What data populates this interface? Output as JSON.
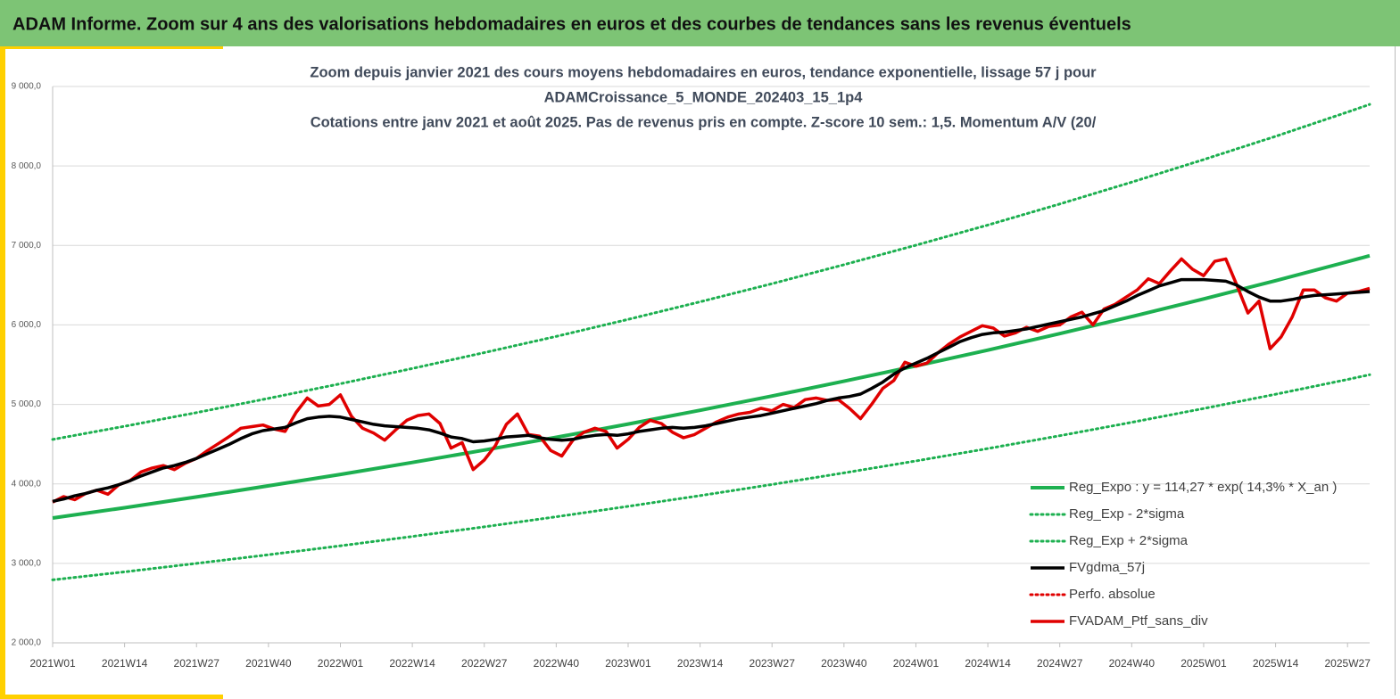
{
  "header": {
    "title": "ADAM Informe. Zoom sur 4 ans des valorisations hebdomadaires en euros et des courbes de tendances sans les revenus éventuels"
  },
  "chart_data": {
    "type": "line",
    "title": [
      "Zoom depuis janvier 2021 des cours moyens hebdomadaires  en euros, tendance exponentielle, lissage 57 j pour",
      "ADAMCroissance_5_MONDE_202403_15_1p4",
      "Cotations entre janv 2021 et août 2025. Pas de revenus pris en compte. Z-score 10 sem.: 1,5. Momentum A/V (20/"
    ],
    "xlim": [
      0,
      238
    ],
    "xticks": [
      {
        "value": 0,
        "label": "2021W01"
      },
      {
        "value": 13,
        "label": "2021W14"
      },
      {
        "value": 26,
        "label": "2021W27"
      },
      {
        "value": 39,
        "label": "2021W40"
      },
      {
        "value": 52,
        "label": "2022W01"
      },
      {
        "value": 65,
        "label": "2022W14"
      },
      {
        "value": 78,
        "label": "2022W27"
      },
      {
        "value": 91,
        "label": "2022W40"
      },
      {
        "value": 104,
        "label": "2023W01"
      },
      {
        "value": 117,
        "label": "2023W14"
      },
      {
        "value": 130,
        "label": "2023W27"
      },
      {
        "value": 143,
        "label": "2023W40"
      },
      {
        "value": 156,
        "label": "2024W01"
      },
      {
        "value": 169,
        "label": "2024W14"
      },
      {
        "value": 182,
        "label": "2024W27"
      },
      {
        "value": 195,
        "label": "2024W40"
      },
      {
        "value": 208,
        "label": "2025W01"
      },
      {
        "value": 221,
        "label": "2025W14"
      },
      {
        "value": 234,
        "label": "2025W27"
      }
    ],
    "ylim": [
      2000,
      9000
    ],
    "yticks": [
      {
        "value": 2000,
        "label": "2 000,0"
      },
      {
        "value": 3000,
        "label": "3 000,0"
      },
      {
        "value": 4000,
        "label": "4 000,0"
      },
      {
        "value": 5000,
        "label": "5 000,0"
      },
      {
        "value": 6000,
        "label": "6 000,0"
      },
      {
        "value": 7000,
        "label": "7 000,0"
      },
      {
        "value": 8000,
        "label": "8 000,0"
      },
      {
        "value": 9000,
        "label": "9 000,0"
      }
    ],
    "grid": true,
    "legend": "lower right",
    "series": [
      {
        "name": "Reg_Expo : y = 114,27 * exp( 14,3% *  X_an )",
        "color": "#1db050",
        "style": "solid",
        "width": 4,
        "x": [
          0,
          13,
          26,
          39,
          52,
          65,
          78,
          91,
          104,
          117,
          130,
          143,
          156,
          169,
          182,
          195,
          208,
          221,
          234,
          238
        ],
        "values": [
          3570,
          3700,
          3835,
          3975,
          4119,
          4269,
          4425,
          4586,
          4753,
          4926,
          5105,
          5291,
          5484,
          5683,
          5890,
          6105,
          6327,
          6557,
          6796,
          6871
        ]
      },
      {
        "name": "Reg_Exp - 2*sigma",
        "color": "#1db050",
        "style": "dotted",
        "width": 3,
        "x": [
          0,
          13,
          26,
          39,
          52,
          65,
          78,
          91,
          104,
          117,
          130,
          143,
          156,
          169,
          182,
          195,
          208,
          221,
          234,
          238
        ],
        "values": [
          2792,
          2893,
          2999,
          3108,
          3221,
          3338,
          3460,
          3586,
          3717,
          3852,
          3992,
          4138,
          4288,
          4444,
          4606,
          4774,
          4948,
          5128,
          5314,
          5373
        ]
      },
      {
        "name": "Reg_Exp + 2*sigma",
        "color": "#1db050",
        "style": "dotted",
        "width": 3,
        "x": [
          0,
          13,
          26,
          39,
          52,
          65,
          78,
          91,
          104,
          117,
          130,
          143,
          156,
          169,
          182,
          195,
          208,
          221,
          234,
          238
        ],
        "values": [
          4559,
          4725,
          4897,
          5076,
          5260,
          5452,
          5651,
          5856,
          6070,
          6291,
          6519,
          6757,
          7003,
          7257,
          7522,
          7796,
          8080,
          8373,
          8678,
          8774
        ]
      },
      {
        "name": "FVgdma_57j",
        "color": "#000000",
        "style": "solid",
        "width": 3.5,
        "x": [
          0,
          2,
          4,
          6,
          8,
          10,
          12,
          14,
          16,
          18,
          20,
          22,
          24,
          26,
          28,
          30,
          32,
          34,
          36,
          38,
          40,
          42,
          44,
          46,
          48,
          50,
          52,
          54,
          56,
          58,
          60,
          62,
          64,
          66,
          68,
          70,
          72,
          74,
          76,
          78,
          80,
          82,
          84,
          86,
          88,
          90,
          92,
          94,
          96,
          98,
          100,
          102,
          104,
          106,
          108,
          110,
          112,
          114,
          116,
          118,
          120,
          122,
          124,
          126,
          128,
          130,
          132,
          134,
          136,
          138,
          140,
          142,
          144,
          146,
          148,
          150,
          152,
          154,
          156,
          158,
          160,
          162,
          164,
          166,
          168,
          170,
          172,
          174,
          176,
          178,
          180,
          182,
          184,
          186,
          188,
          190,
          192,
          194,
          196,
          198,
          200,
          202,
          204,
          206,
          208,
          210,
          212,
          214,
          216,
          218,
          220,
          222,
          224,
          226,
          228,
          230,
          232,
          234,
          236,
          238
        ],
        "values": [
          3780,
          3810,
          3850,
          3880,
          3920,
          3950,
          3990,
          4040,
          4100,
          4150,
          4200,
          4230,
          4270,
          4320,
          4380,
          4440,
          4500,
          4570,
          4630,
          4670,
          4690,
          4710,
          4770,
          4820,
          4840,
          4850,
          4840,
          4810,
          4780,
          4750,
          4730,
          4720,
          4710,
          4700,
          4680,
          4640,
          4590,
          4570,
          4530,
          4540,
          4560,
          4590,
          4600,
          4610,
          4580,
          4560,
          4550,
          4560,
          4590,
          4610,
          4620,
          4610,
          4630,
          4660,
          4680,
          4700,
          4710,
          4700,
          4710,
          4730,
          4760,
          4790,
          4820,
          4840,
          4860,
          4890,
          4920,
          4950,
          4980,
          5010,
          5050,
          5080,
          5100,
          5130,
          5200,
          5280,
          5380,
          5460,
          5520,
          5580,
          5650,
          5720,
          5790,
          5840,
          5880,
          5900,
          5910,
          5930,
          5950,
          5980,
          6010,
          6040,
          6070,
          6100,
          6140,
          6180,
          6240,
          6300,
          6370,
          6430,
          6490,
          6530,
          6570,
          6570,
          6570,
          6560,
          6550,
          6500,
          6420,
          6350,
          6300,
          6300,
          6320,
          6350,
          6370,
          6380,
          6390,
          6400,
          6410,
          6420
        ]
      },
      {
        "name": "Perfo. absolue",
        "color": "#e00000",
        "style": "dotted",
        "width": 3,
        "x": [],
        "values": []
      },
      {
        "name": "FVADAM_Ptf_sans_div",
        "color": "#e00000",
        "style": "solid",
        "width": 3.5,
        "x": [
          0,
          2,
          4,
          6,
          8,
          10,
          12,
          14,
          16,
          18,
          20,
          22,
          24,
          26,
          28,
          30,
          32,
          34,
          36,
          38,
          40,
          42,
          44,
          46,
          48,
          50,
          52,
          54,
          56,
          58,
          60,
          62,
          64,
          66,
          68,
          70,
          72,
          74,
          76,
          78,
          80,
          82,
          84,
          86,
          88,
          90,
          92,
          94,
          96,
          98,
          100,
          102,
          104,
          106,
          108,
          110,
          112,
          114,
          116,
          118,
          120,
          122,
          124,
          126,
          128,
          130,
          132,
          134,
          136,
          138,
          140,
          142,
          144,
          146,
          148,
          150,
          152,
          154,
          156,
          158,
          160,
          162,
          164,
          166,
          168,
          170,
          172,
          174,
          176,
          178,
          180,
          182,
          184,
          186,
          188,
          190,
          192,
          194,
          196,
          198,
          200,
          202,
          204,
          206,
          208,
          210,
          212,
          214,
          216,
          218,
          220,
          222,
          224,
          226,
          228,
          230,
          232,
          234,
          236,
          238
        ],
        "values": [
          3770,
          3840,
          3800,
          3880,
          3920,
          3870,
          3990,
          4040,
          4150,
          4200,
          4230,
          4180,
          4260,
          4320,
          4420,
          4510,
          4600,
          4700,
          4720,
          4740,
          4690,
          4660,
          4900,
          5080,
          4980,
          5000,
          5120,
          4850,
          4700,
          4640,
          4550,
          4680,
          4800,
          4860,
          4880,
          4760,
          4450,
          4520,
          4180,
          4300,
          4480,
          4750,
          4880,
          4620,
          4600,
          4420,
          4350,
          4550,
          4650,
          4700,
          4660,
          4450,
          4560,
          4710,
          4800,
          4760,
          4650,
          4580,
          4620,
          4700,
          4780,
          4840,
          4880,
          4900,
          4950,
          4920,
          5000,
          4960,
          5060,
          5080,
          5050,
          5060,
          4950,
          4820,
          5000,
          5200,
          5300,
          5530,
          5480,
          5520,
          5650,
          5760,
          5850,
          5920,
          5990,
          5960,
          5860,
          5900,
          5970,
          5920,
          5980,
          6000,
          6100,
          6160,
          6000,
          6200,
          6260,
          6350,
          6440,
          6580,
          6520,
          6680,
          6830,
          6700,
          6620,
          6800,
          6830,
          6500,
          6150,
          6300,
          5700,
          5850,
          6100,
          6440,
          6440,
          6340,
          6300,
          6400,
          6420,
          6460
        ]
      }
    ]
  }
}
